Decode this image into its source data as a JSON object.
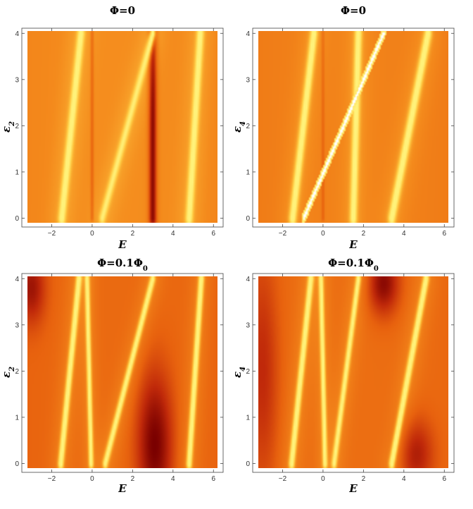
{
  "chart_data": [
    {
      "type": "heatmap",
      "title": "Φ=0",
      "xlabel": "E",
      "ylabel": "ε",
      "ylabel_sub": "2",
      "xlim": [
        -3.2,
        6.2
      ],
      "ylim": [
        -0.1,
        4.05
      ],
      "xticks": [
        -2,
        0,
        2,
        4,
        6
      ],
      "yticks": [
        0,
        1,
        2,
        3,
        4
      ],
      "colorscale": [
        "#7a0000",
        "#c0290a",
        "#e8620e",
        "#f48a1c",
        "#ffc840",
        "#fff27a"
      ],
      "background_level": 0.55,
      "bright_lines": [
        {
          "points": [
            [
              -1.5,
              0
            ],
            [
              -0.55,
              4
            ]
          ],
          "width": 0.12,
          "level": 1.0
        },
        {
          "points": [
            [
              0.5,
              0
            ],
            [
              3.0,
              4
            ]
          ],
          "width": 0.1,
          "level": 0.92
        },
        {
          "points": [
            [
              4.8,
              0
            ],
            [
              5.35,
              4
            ]
          ],
          "width": 0.12,
          "level": 1.0
        }
      ],
      "dark_lines": [
        {
          "points": [
            [
              3.0,
              0
            ],
            [
              3.0,
              4
            ]
          ],
          "width": 0.14,
          "level": 0.05
        },
        {
          "points": [
            [
              0.0,
              0
            ],
            [
              0.0,
              4
            ]
          ],
          "width": 0.05,
          "level": 0.4
        }
      ],
      "dark_blobs": []
    },
    {
      "type": "heatmap",
      "title": "Φ=0",
      "xlabel": "E",
      "ylabel": "ε",
      "ylabel_sub": "4",
      "xlim": [
        -3.2,
        6.2
      ],
      "ylim": [
        -0.1,
        4.05
      ],
      "xticks": [
        -2,
        0,
        2,
        4,
        6
      ],
      "yticks": [
        0,
        1,
        2,
        3,
        4
      ],
      "colorscale": [
        "#7a0000",
        "#c0290a",
        "#e8620e",
        "#f48a1c",
        "#ffc840",
        "#fff27a"
      ],
      "background_level": 0.5,
      "bright_lines": [
        {
          "points": [
            [
              -1.5,
              0
            ],
            [
              -0.45,
              4
            ]
          ],
          "width": 0.12,
          "level": 1.0
        },
        {
          "points": [
            [
              1.5,
              0
            ],
            [
              1.75,
              4
            ]
          ],
          "width": 0.12,
          "level": 1.0
        },
        {
          "points": [
            [
              3.4,
              0
            ],
            [
              5.2,
              4
            ]
          ],
          "width": 0.12,
          "level": 1.0
        }
      ],
      "dark_lines": [
        {
          "points": [
            [
              0.0,
              0
            ],
            [
              0.0,
              4
            ]
          ],
          "width": 0.05,
          "level": 0.4
        }
      ],
      "dark_blobs": [],
      "white_streak": {
        "points": [
          [
            -0.95,
            0
          ],
          [
            3.0,
            4
          ]
        ],
        "width": 0.07
      }
    },
    {
      "type": "heatmap",
      "title": "Φ=0.1Φ",
      "title_sub": "0",
      "xlabel": "E",
      "ylabel": "ε",
      "ylabel_sub": "2",
      "xlim": [
        -3.2,
        6.2
      ],
      "ylim": [
        -0.1,
        4.05
      ],
      "xticks": [
        -2,
        0,
        2,
        4,
        6
      ],
      "yticks": [
        0,
        1,
        2,
        3,
        4
      ],
      "colorscale": [
        "#7a0000",
        "#c0290a",
        "#e8620e",
        "#f48a1c",
        "#ffc840",
        "#fff27a"
      ],
      "background_level": 0.38,
      "bright_lines": [
        {
          "points": [
            [
              -1.55,
              0
            ],
            [
              -0.65,
              4
            ]
          ],
          "width": 0.1,
          "level": 1.0
        },
        {
          "points": [
            [
              -0.05,
              0
            ],
            [
              -0.25,
              4
            ]
          ],
          "width": 0.08,
          "level": 1.0
        },
        {
          "points": [
            [
              0.65,
              0
            ],
            [
              3.0,
              4
            ]
          ],
          "width": 0.09,
          "level": 0.95
        },
        {
          "points": [
            [
              4.8,
              0
            ],
            [
              5.4,
              4
            ]
          ],
          "width": 0.1,
          "level": 1.0
        }
      ],
      "dark_lines": [],
      "dark_blobs": [
        {
          "x": 3.1,
          "y": 0.4,
          "rx": 0.9,
          "ry": 1.6,
          "level": 0.0
        },
        {
          "x": -3.0,
          "y": 3.8,
          "rx": 0.7,
          "ry": 0.8,
          "level": 0.1
        }
      ]
    },
    {
      "type": "heatmap",
      "title": "Φ=0.1Φ",
      "title_sub": "0",
      "xlabel": "E",
      "ylabel": "ε",
      "ylabel_sub": "4",
      "xlim": [
        -3.2,
        6.2
      ],
      "ylim": [
        -0.1,
        4.05
      ],
      "xticks": [
        -2,
        0,
        2,
        4,
        6
      ],
      "yticks": [
        0,
        1,
        2,
        3,
        4
      ],
      "colorscale": [
        "#7a0000",
        "#c0290a",
        "#e8620e",
        "#f48a1c",
        "#ffc840",
        "#fff27a"
      ],
      "background_level": 0.4,
      "bright_lines": [
        {
          "points": [
            [
              -1.55,
              0
            ],
            [
              -0.6,
              4
            ]
          ],
          "width": 0.1,
          "level": 1.0
        },
        {
          "points": [
            [
              0.1,
              0
            ],
            [
              -0.1,
              4
            ]
          ],
          "width": 0.08,
          "level": 1.0
        },
        {
          "points": [
            [
              0.55,
              0
            ],
            [
              1.75,
              4
            ]
          ],
          "width": 0.09,
          "level": 0.95
        },
        {
          "points": [
            [
              3.4,
              0
            ],
            [
              5.1,
              4
            ]
          ],
          "width": 0.1,
          "level": 1.0
        }
      ],
      "dark_lines": [],
      "dark_blobs": [
        {
          "x": 3.0,
          "y": 3.9,
          "rx": 0.8,
          "ry": 0.7,
          "level": 0.05
        },
        {
          "x": -3.0,
          "y": 2.0,
          "rx": 0.8,
          "ry": 2.5,
          "level": 0.2
        },
        {
          "x": 4.6,
          "y": 0.2,
          "rx": 0.9,
          "ry": 0.8,
          "level": 0.15
        }
      ]
    }
  ]
}
